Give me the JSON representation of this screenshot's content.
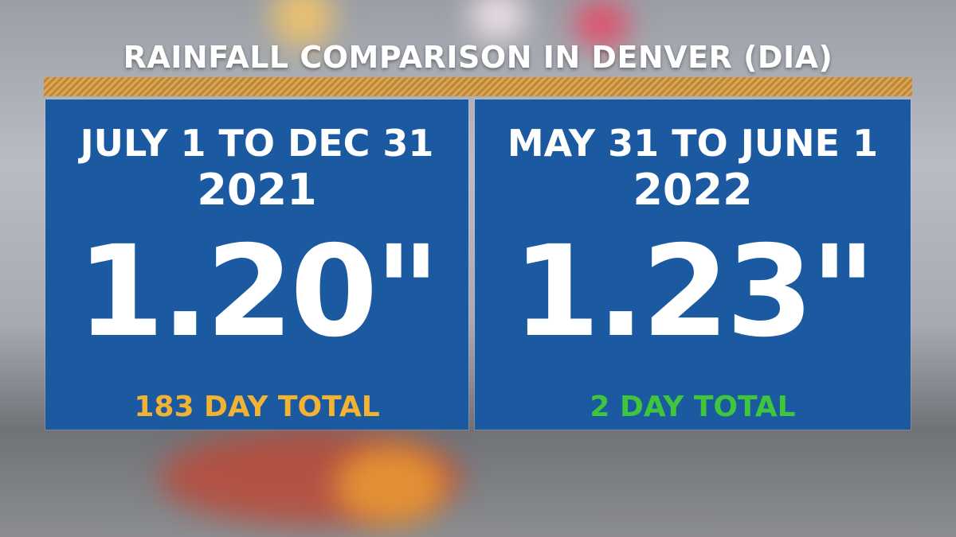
{
  "header": {
    "title": "RAINFALL COMPARISON IN DENVER (DIA)"
  },
  "panels": [
    {
      "period": "JULY 1 TO DEC 31",
      "year": "2021",
      "amount": "1.20\"",
      "footer": "183 DAY TOTAL"
    },
    {
      "period": "MAY 31 TO JUNE 1",
      "year": "2022",
      "amount": "1.23\"",
      "footer": "2 DAY TOTAL"
    }
  ]
}
